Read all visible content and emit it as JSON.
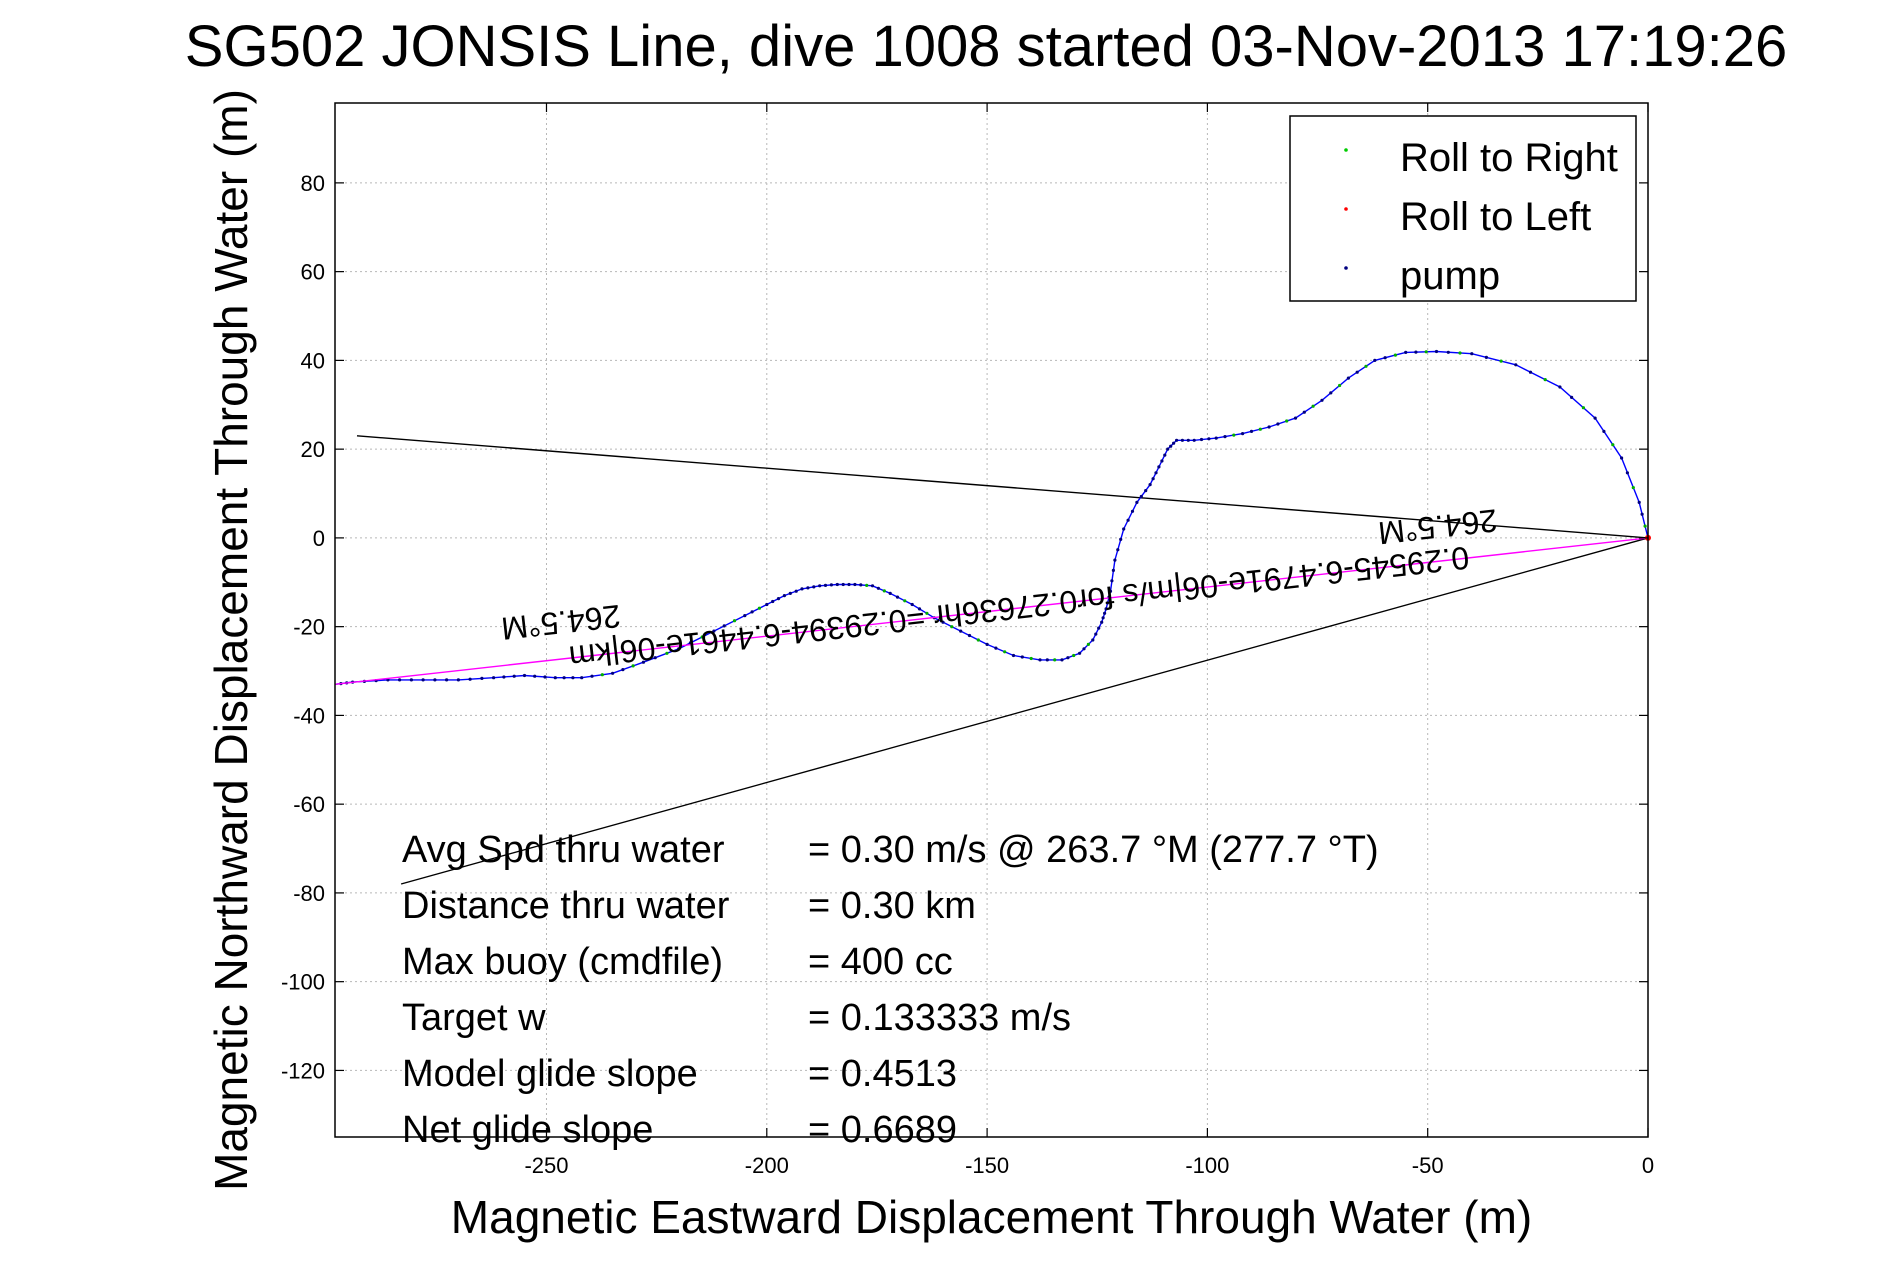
{
  "chart_data": {
    "type": "line",
    "title": "SG502 JONSIS Line, dive 1008 started 03-Nov-2013 17:19:26",
    "xlabel": "Magnetic Eastward Displacement Through Water (m)",
    "ylabel": "Magnetic Northward Displacement Through Water (m)",
    "xlim": [
      -298,
      0
    ],
    "ylim": [
      -135,
      98
    ],
    "xticks": [
      -250,
      -200,
      -150,
      -100,
      -50,
      0
    ],
    "yticks": [
      80,
      60,
      40,
      20,
      0,
      -20,
      -40,
      -60,
      -80,
      -100,
      -120
    ],
    "grid": true,
    "legend": {
      "position": "top-right",
      "entries": [
        {
          "label": "Roll to Right",
          "color": "#00cc00"
        },
        {
          "label": "Roll to Left",
          "color": "#ff0000"
        },
        {
          "label": "pump",
          "color": "#000080"
        }
      ]
    },
    "series": [
      {
        "role": "track",
        "color": "#0000ff",
        "x": [
          0,
          -2,
          -6,
          -12,
          -20,
          -30,
          -40,
          -48,
          -55,
          -62,
          -68,
          -74,
          -80,
          -86,
          -92,
          -98,
          -103,
          -107,
          -109,
          -111,
          -113,
          -116,
          -119,
          -121,
          -122,
          -123,
          -124,
          -126,
          -129,
          -133,
          -138,
          -144,
          -150,
          -156,
          -162,
          -167,
          -172,
          -176,
          -180,
          -184,
          -188,
          -192,
          -196,
          -200,
          -205,
          -212,
          -220,
          -228,
          -235,
          -242,
          -248,
          -255,
          -262,
          -270,
          -278,
          -286,
          -294,
          -298
        ],
        "y": [
          0,
          8,
          18,
          27,
          34,
          39,
          41.5,
          42,
          41.8,
          40,
          36,
          31,
          27,
          25,
          23.5,
          22.5,
          22,
          22,
          20,
          16,
          12,
          8,
          2,
          -5,
          -12,
          -16,
          -19,
          -23,
          -26,
          -27.5,
          -27.5,
          -26.5,
          -24,
          -21,
          -18,
          -15,
          -12.5,
          -10.8,
          -10.5,
          -10.5,
          -10.8,
          -11.5,
          -13,
          -15,
          -17.5,
          -21,
          -25,
          -28,
          -30.5,
          -31.5,
          -31.5,
          -31,
          -31.5,
          -32,
          -32,
          -32,
          -32.5,
          -33
        ]
      },
      {
        "role": "ideal-heading",
        "color": "#ff00ff",
        "x": [
          0,
          -298
        ],
        "y": [
          0,
          -33
        ]
      },
      {
        "role": "reference-line",
        "color": "#000000",
        "x": [
          0,
          -293
        ],
        "y": [
          0,
          23
        ]
      },
      {
        "role": "reference-line",
        "color": "#000000",
        "x": [
          0,
          -283
        ],
        "y": [
          0,
          -78
        ]
      }
    ],
    "annotations": [
      {
        "text": "0.29545-6.4791e-06|m/s for0.27636hr =0.29394-6.4461e-06|km",
        "rotated": true
      },
      {
        "text": "264.5°M",
        "rotated": true
      },
      {
        "text": "264.5°M",
        "rotated": true
      }
    ]
  },
  "stats": [
    {
      "label": "Avg Spd thru water",
      "value": "=  0.30 m/s @ 263.7 °M (277.7 °T)"
    },
    {
      "label": "Distance thru water",
      "value": "=  0.30 km"
    },
    {
      "label": "Max buoy (cmdfile)",
      "value": "= 400 cc"
    },
    {
      "label": "Target w",
      "value": "= 0.133333 m/s"
    },
    {
      "label": "Model glide slope",
      "value": "= 0.4513"
    },
    {
      "label": "Net glide slope",
      "value": "= 0.6689"
    }
  ]
}
